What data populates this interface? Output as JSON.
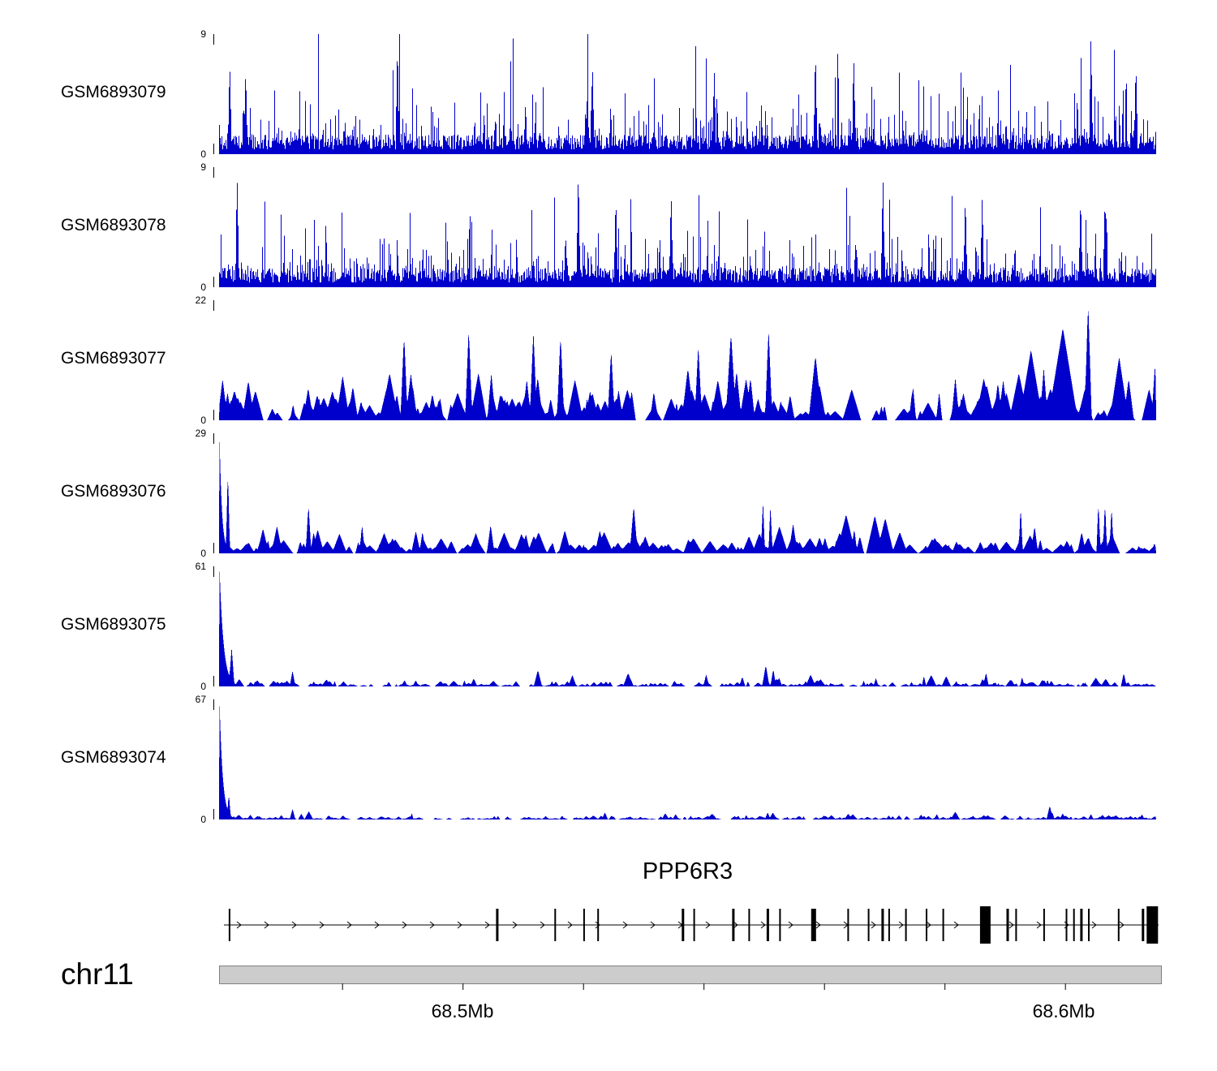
{
  "figure": {
    "chromosome_label": "chr11",
    "gene_label": "PPP6R3"
  },
  "chart_data": {
    "type": "area",
    "title": "",
    "description": "Genome browser coverage tracks (read-depth signal, blue) for six GEO samples over chr11 ~68.46-68.62 Mb spanning the PPP6R3 gene model and chromosome axis",
    "signal_color": "#0000cc",
    "legend_position": "none",
    "grid": false,
    "region": {
      "chromosome": "chr11",
      "start_mb": 68.4595,
      "end_mb": 68.616,
      "minor_ticks_mb": [
        68.48,
        68.5,
        68.52,
        68.54,
        68.56,
        68.58,
        68.6
      ],
      "tick_labels": [
        {
          "mb": 68.5,
          "label": "68.5Mb"
        },
        {
          "mb": 68.6,
          "label": "68.6Mb"
        }
      ]
    },
    "tracks": [
      {
        "name": "GSM6893079",
        "ymin": 0,
        "ymax": 9,
        "ymin_label": "0",
        "ymax_label": "9",
        "style": "spikes",
        "seed": 7911,
        "base": 0.35,
        "noise": 1.1,
        "spike_prob": 0.3,
        "spike_scale": 1.4,
        "big_spikes": [
          {
            "pos": 0.011,
            "h": 7.0
          },
          {
            "pos": 0.028,
            "h": 6.5
          },
          {
            "pos": 0.19,
            "h": 8.5
          },
          {
            "pos": 0.398,
            "h": 7.0
          },
          {
            "pos": 0.528,
            "h": 6.5
          },
          {
            "pos": 0.636,
            "h": 8.0
          },
          {
            "pos": 0.677,
            "h": 7.0
          },
          {
            "pos": 0.93,
            "h": 9.0
          },
          {
            "pos": 0.978,
            "h": 7.0
          }
        ]
      },
      {
        "name": "GSM6893078",
        "ymin": 0,
        "ymax": 9,
        "ymin_label": "0",
        "ymax_label": "9",
        "style": "spikes",
        "seed": 7812,
        "base": 0.35,
        "noise": 1.1,
        "spike_prob": 0.3,
        "spike_scale": 1.4,
        "big_spikes": [
          {
            "pos": 0.019,
            "h": 8.0
          },
          {
            "pos": 0.383,
            "h": 9.0
          },
          {
            "pos": 0.423,
            "h": 7.0
          },
          {
            "pos": 0.482,
            "h": 7.3
          },
          {
            "pos": 0.708,
            "h": 8.4
          },
          {
            "pos": 0.796,
            "h": 7.0
          },
          {
            "pos": 0.814,
            "h": 7.0
          },
          {
            "pos": 0.919,
            "h": 7.0
          },
          {
            "pos": 0.945,
            "h": 7.0
          }
        ]
      },
      {
        "name": "GSM6893077",
        "ymin": 0,
        "ymax": 22,
        "ymin_label": "0",
        "ymax_label": "22",
        "style": "triangles",
        "seed": 7713,
        "peaks": 250,
        "hbase": 1.3,
        "hscale": 2.2,
        "wmin": 3,
        "wvar": 9,
        "big_spikes": [
          {
            "pos": 0.197,
            "h": 16,
            "w": 4
          },
          {
            "pos": 0.266,
            "h": 17,
            "w": 4
          },
          {
            "pos": 0.335,
            "h": 16.5,
            "w": 4
          },
          {
            "pos": 0.364,
            "h": 16,
            "w": 4
          },
          {
            "pos": 0.418,
            "h": 13,
            "w": 4
          },
          {
            "pos": 0.511,
            "h": 14,
            "w": 4
          },
          {
            "pos": 0.586,
            "h": 17,
            "w": 4
          },
          {
            "pos": 0.636,
            "h": 12,
            "w": 8
          },
          {
            "pos": 0.866,
            "h": 13,
            "w": 14
          },
          {
            "pos": 0.9,
            "h": 17,
            "w": 18
          },
          {
            "pos": 0.927,
            "h": 22,
            "w": 4
          }
        ]
      },
      {
        "name": "GSM6893076",
        "ymin": 0,
        "ymax": 29,
        "ymin_label": "0",
        "ymax_label": "29",
        "style": "triangles",
        "seed": 7614,
        "peaks": 230,
        "hbase": 1.1,
        "hscale": 1.6,
        "wmin": 3,
        "wvar": 9,
        "start_peak": {
          "h": 29,
          "w": 3
        },
        "big_spikes": [
          {
            "pos": 0.009,
            "h": 21,
            "w": 2
          },
          {
            "pos": 0.095,
            "h": 12,
            "w": 3
          },
          {
            "pos": 0.58,
            "h": 13,
            "w": 2
          },
          {
            "pos": 0.588,
            "h": 12,
            "w": 2
          },
          {
            "pos": 0.855,
            "h": 12,
            "w": 2
          },
          {
            "pos": 0.938,
            "h": 13,
            "w": 2
          },
          {
            "pos": 0.945,
            "h": 13,
            "w": 2
          },
          {
            "pos": 0.952,
            "h": 12,
            "w": 2
          }
        ]
      },
      {
        "name": "GSM6893075",
        "ymin": 0,
        "ymax": 61,
        "ymin_label": "0",
        "ymax_label": "61",
        "style": "triangles",
        "seed": 7515,
        "peaks": 300,
        "hbase": 0.7,
        "hscale": 1.1,
        "wmin": 2,
        "wvar": 5,
        "start_peak": {
          "h": 61,
          "w": 5
        },
        "big_spikes": [
          {
            "pos": 0.013,
            "h": 20,
            "w": 3
          },
          {
            "pos": 0.078,
            "h": 8,
            "w": 3
          },
          {
            "pos": 0.583,
            "h": 11,
            "w": 4
          },
          {
            "pos": 0.591,
            "h": 9,
            "w": 3
          },
          {
            "pos": 0.818,
            "h": 7,
            "w": 3
          },
          {
            "pos": 0.965,
            "h": 7,
            "w": 3
          }
        ]
      },
      {
        "name": "GSM6893074",
        "ymin": 0,
        "ymax": 67,
        "ymin_label": "0",
        "ymax_label": "67",
        "style": "triangles",
        "seed": 7416,
        "peaks": 300,
        "hbase": 0.5,
        "hscale": 0.7,
        "wmin": 2,
        "wvar": 5,
        "start_peak": {
          "h": 67,
          "w": 4
        },
        "big_spikes": [
          {
            "pos": 0.01,
            "h": 15,
            "w": 2
          },
          {
            "pos": 0.078,
            "h": 6,
            "w": 3
          },
          {
            "pos": 0.585,
            "h": 4,
            "w": 3
          },
          {
            "pos": 0.93,
            "h": 3,
            "w": 3
          }
        ]
      }
    ],
    "gene_track": {
      "gene": "PPP6R3",
      "strand": "+",
      "arrow_spacing_px": 34,
      "exons": [
        {
          "pos": 0.006,
          "w": 2,
          "h": 40
        },
        {
          "pos": 0.293,
          "w": 3,
          "h": 40
        },
        {
          "pos": 0.355,
          "w": 2,
          "h": 40
        },
        {
          "pos": 0.386,
          "w": 2,
          "h": 40
        },
        {
          "pos": 0.401,
          "w": 2,
          "h": 40
        },
        {
          "pos": 0.492,
          "w": 3,
          "h": 40
        },
        {
          "pos": 0.504,
          "w": 2,
          "h": 40
        },
        {
          "pos": 0.546,
          "w": 3,
          "h": 40
        },
        {
          "pos": 0.563,
          "w": 2,
          "h": 40
        },
        {
          "pos": 0.583,
          "w": 3,
          "h": 40
        },
        {
          "pos": 0.596,
          "w": 2,
          "h": 40
        },
        {
          "pos": 0.632,
          "w": 6,
          "h": 40
        },
        {
          "pos": 0.669,
          "w": 2,
          "h": 40
        },
        {
          "pos": 0.691,
          "w": 2,
          "h": 40
        },
        {
          "pos": 0.706,
          "w": 3,
          "h": 40
        },
        {
          "pos": 0.713,
          "w": 2,
          "h": 40
        },
        {
          "pos": 0.731,
          "w": 2,
          "h": 40
        },
        {
          "pos": 0.753,
          "w": 2,
          "h": 40
        },
        {
          "pos": 0.771,
          "w": 2,
          "h": 40
        },
        {
          "pos": 0.816,
          "w": 13,
          "h": 46
        },
        {
          "pos": 0.84,
          "w": 3,
          "h": 40
        },
        {
          "pos": 0.849,
          "w": 2,
          "h": 40
        },
        {
          "pos": 0.879,
          "w": 2,
          "h": 40
        },
        {
          "pos": 0.903,
          "w": 2,
          "h": 40
        },
        {
          "pos": 0.911,
          "w": 2,
          "h": 40
        },
        {
          "pos": 0.919,
          "w": 3,
          "h": 40
        },
        {
          "pos": 0.927,
          "w": 2,
          "h": 40
        },
        {
          "pos": 0.959,
          "w": 2,
          "h": 40
        },
        {
          "pos": 0.985,
          "w": 3,
          "h": 40
        },
        {
          "pos": 0.995,
          "w": 14,
          "h": 46
        }
      ]
    }
  }
}
